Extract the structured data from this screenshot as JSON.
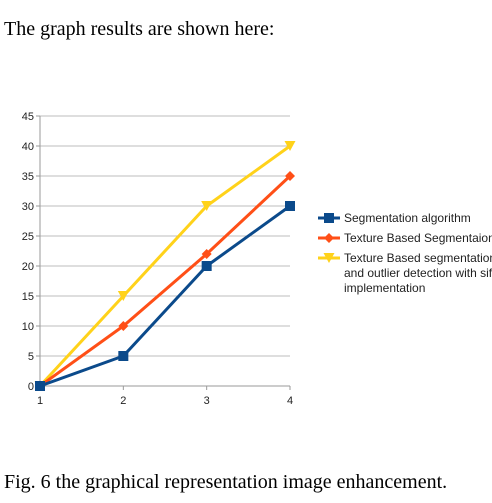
{
  "intro_text": "The graph results are shown here:",
  "caption": "Fig. 6 the graphical representation image enhancement.",
  "chart_data": {
    "type": "line",
    "title": "",
    "xlabel": "",
    "ylabel": "",
    "x": [
      1,
      2,
      3,
      4
    ],
    "y_ticks": [
      0,
      5,
      10,
      15,
      20,
      25,
      30,
      35,
      40,
      45
    ],
    "ylim": [
      0,
      45
    ],
    "grid": true,
    "legend_position": "right",
    "series": [
      {
        "name": "Segmentation algorithm",
        "values": [
          0,
          5,
          20,
          30
        ],
        "color": "#0b4a8b",
        "marker": "square"
      },
      {
        "name": "Texture Based Segmentaion",
        "values": [
          0,
          10,
          22,
          35
        ],
        "color": "#ff4f17",
        "marker": "diamond"
      },
      {
        "name": "Texture Based segmentation and outlier detection with sift implementation",
        "legend_lines": [
          "Texture Based segmentation",
          "and outlier detection with sift",
          "implementation"
        ],
        "values": [
          0,
          15,
          30,
          40
        ],
        "color": "#ffd21a",
        "marker": "triangle-down"
      }
    ]
  }
}
